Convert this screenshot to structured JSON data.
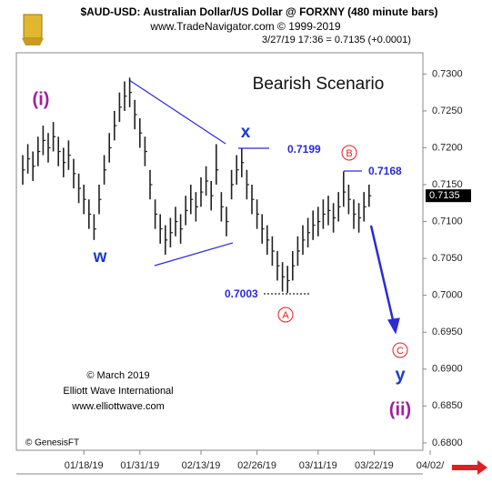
{
  "chart_data": {
    "type": "ohlc",
    "title": "$AUD-USD:  Australian Dollar/US Dollar @ FORXNY  (480 minute bars)",
    "subtitle": "www.TradeNavigator.com © 1999-2019",
    "quote": "3/27/19 17:36 = 0.7135 (+0.0001)",
    "scenario": "Bearish Scenario",
    "last_price_label": "0.7135",
    "color": "#222222",
    "categories": [
      null,
      null,
      null,
      null,
      null,
      null,
      null,
      null,
      null,
      null,
      null,
      null,
      "01/18/19",
      null,
      null,
      null,
      null,
      null,
      null,
      null,
      null,
      null,
      null,
      "01/31/19",
      null,
      null,
      null,
      null,
      null,
      null,
      null,
      null,
      null,
      null,
      null,
      "02/13/19",
      null,
      null,
      null,
      null,
      null,
      null,
      null,
      null,
      null,
      null,
      "02/26/19",
      null,
      null,
      null,
      null,
      null,
      null,
      null,
      null,
      null,
      null,
      null,
      "03/11/19",
      null,
      null,
      null,
      null,
      null,
      null,
      null,
      null,
      null,
      null,
      "03/22/19",
      null,
      null,
      null,
      null,
      null,
      null,
      null,
      null,
      null,
      null,
      "04/02/"
    ],
    "high": [
      0.719,
      0.7205,
      0.7195,
      0.7215,
      0.723,
      0.722,
      0.7235,
      0.7215,
      0.72,
      0.721,
      0.7185,
      0.7165,
      0.715,
      0.713,
      0.711,
      0.715,
      0.719,
      0.722,
      0.725,
      0.7275,
      0.729,
      0.7295,
      0.7265,
      0.724,
      0.7215,
      0.717,
      0.713,
      0.711,
      0.7095,
      0.7105,
      0.712,
      0.711,
      0.7135,
      0.715,
      0.714,
      0.716,
      0.7175,
      0.7155,
      0.7205,
      0.714,
      0.712,
      0.717,
      0.719,
      0.7199,
      0.717,
      0.715,
      0.713,
      0.711,
      0.7095,
      0.708,
      0.706,
      0.7045,
      0.704,
      0.706,
      0.708,
      0.7095,
      0.7105,
      0.7115,
      0.712,
      0.713,
      0.7135,
      0.7125,
      0.714,
      0.7168,
      0.715,
      0.713,
      0.7125,
      0.714,
      0.715,
      null,
      null,
      null,
      null,
      null,
      null,
      null,
      null,
      null,
      null,
      null,
      null
    ],
    "low": [
      0.715,
      0.7165,
      0.7155,
      0.7175,
      0.719,
      0.718,
      0.7195,
      0.7175,
      0.716,
      0.717,
      0.7145,
      0.7125,
      0.711,
      0.709,
      0.7075,
      0.711,
      0.715,
      0.718,
      0.721,
      0.7235,
      0.725,
      0.7255,
      0.7225,
      0.72,
      0.7175,
      0.713,
      0.709,
      0.707,
      0.7055,
      0.7065,
      0.708,
      0.707,
      0.7095,
      0.711,
      0.71,
      0.712,
      0.7135,
      0.7115,
      0.715,
      0.71,
      0.708,
      0.713,
      0.715,
      0.716,
      0.713,
      0.711,
      0.709,
      0.707,
      0.7055,
      0.704,
      0.702,
      0.7005,
      0.7003,
      0.702,
      0.704,
      0.7055,
      0.7065,
      0.7075,
      0.708,
      0.709,
      0.7095,
      0.7085,
      0.71,
      0.712,
      0.711,
      0.709,
      0.7085,
      0.71,
      0.712,
      null,
      null,
      null,
      null,
      null,
      null,
      null,
      null,
      null,
      null,
      null,
      null
    ],
    "close": [
      0.717,
      0.7185,
      0.7175,
      0.7195,
      0.721,
      0.72,
      0.7215,
      0.7195,
      0.718,
      0.719,
      0.7165,
      0.7145,
      0.713,
      0.711,
      0.709,
      0.713,
      0.717,
      0.72,
      0.723,
      0.7255,
      0.727,
      0.7275,
      0.7245,
      0.722,
      0.7195,
      0.715,
      0.711,
      0.709,
      0.7075,
      0.7085,
      0.71,
      0.709,
      0.7115,
      0.713,
      0.712,
      0.714,
      0.7155,
      0.7135,
      0.717,
      0.712,
      0.71,
      0.715,
      0.717,
      0.718,
      0.715,
      0.713,
      0.711,
      0.709,
      0.7075,
      0.706,
      0.704,
      0.7025,
      0.702,
      0.704,
      0.706,
      0.7075,
      0.7085,
      0.7095,
      0.71,
      0.711,
      0.7115,
      0.7105,
      0.712,
      0.714,
      0.713,
      0.711,
      0.7105,
      0.712,
      0.7135,
      null,
      null,
      null,
      null,
      null,
      null,
      null,
      null,
      null,
      null,
      null,
      null
    ],
    "ylim": [
      0.679,
      0.7314
    ],
    "yticks": [
      {
        "value": 0.68,
        "label": "0.6800"
      },
      {
        "value": 0.685,
        "label": "0.6850"
      },
      {
        "value": 0.69,
        "label": "0.6900"
      },
      {
        "value": 0.695,
        "label": "0.6950"
      },
      {
        "value": 0.7,
        "label": "0.7000"
      },
      {
        "value": 0.705,
        "label": "0.7050"
      },
      {
        "value": 0.71,
        "label": "0.7100"
      },
      {
        "value": 0.715,
        "label": "0.7150"
      },
      {
        "value": 0.72,
        "label": "0.7200"
      },
      {
        "value": 0.725,
        "label": "0.7250"
      },
      {
        "value": 0.73,
        "label": "0.7300"
      }
    ],
    "annotations": {
      "wave_i": "(i)",
      "wave_w": "w",
      "wave_x": "x",
      "level_x": "0.7199",
      "level_b": "0.7168",
      "level_a": "0.7003",
      "wave_a": "A",
      "wave_b": "B",
      "wave_c": "C",
      "wave_y": "y",
      "wave_ii": "(ii)"
    },
    "credits": [
      "© March 2019",
      "Elliott Wave International",
      "www.elliottwave.com"
    ],
    "source": "© GenesisFT"
  }
}
